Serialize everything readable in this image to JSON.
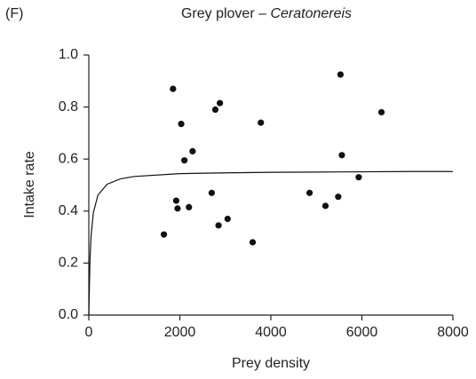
{
  "chart_data": {
    "type": "scatter",
    "panel_label": "(F)",
    "title": "Grey plover – ",
    "title_italic": "Ceratonereis",
    "xlabel": "Prey density",
    "ylabel": "Intake rate",
    "xlim": [
      0,
      8000
    ],
    "ylim": [
      0,
      1.0
    ],
    "xticks": [
      0,
      2000,
      4000,
      6000,
      8000
    ],
    "yticks": [
      {
        "value": 0,
        "label": "0.0"
      },
      {
        "value": 0.2,
        "label": "0.2"
      },
      {
        "value": 0.4,
        "label": "0.4"
      },
      {
        "value": 0.6,
        "label": "0.6"
      },
      {
        "value": 0.8,
        "label": "0.8"
      },
      {
        "value": 1.0,
        "label": "1.0"
      }
    ],
    "series": [
      {
        "kind": "scatter",
        "color": "#111",
        "x": [
          1650,
          1850,
          1920,
          1950,
          2030,
          2100,
          2200,
          2280,
          2700,
          2780,
          2850,
          2880,
          3050,
          3600,
          3780,
          4850,
          5200,
          5480,
          5530,
          5560,
          5930,
          6430
        ],
        "values": [
          0.31,
          0.87,
          0.44,
          0.41,
          0.735,
          0.595,
          0.415,
          0.63,
          0.47,
          0.79,
          0.345,
          0.815,
          0.37,
          0.28,
          0.74,
          0.47,
          0.42,
          0.455,
          0.925,
          0.615,
          0.53,
          0.78
        ]
      },
      {
        "kind": "line",
        "color": "#111",
        "x": [
          0,
          25,
          50,
          100,
          200,
          400,
          700,
          1000,
          2000,
          3000,
          4000,
          5000,
          6000,
          7000,
          8000
        ],
        "values": [
          0,
          0.21,
          0.305,
          0.394,
          0.461,
          0.503,
          0.524,
          0.533,
          0.544,
          0.547,
          0.549,
          0.55,
          0.551,
          0.552,
          0.552
        ]
      }
    ]
  }
}
